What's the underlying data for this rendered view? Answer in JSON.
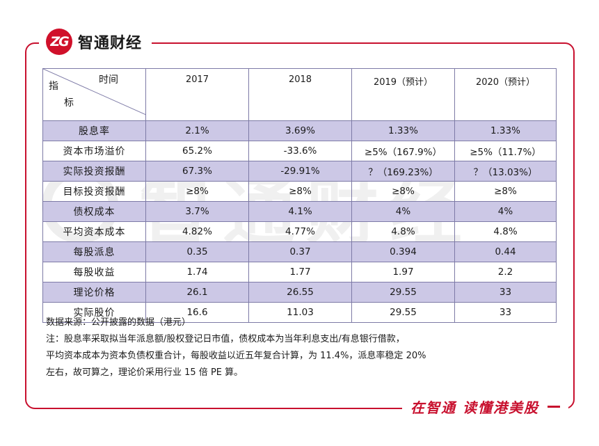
{
  "brand": {
    "logo_text": "ZG",
    "name": "智通财经"
  },
  "slogan": "在智通 读懂港美股",
  "watermark": "智通财经",
  "table": {
    "header": {
      "time_label": "时间",
      "indicator_label_top": "指",
      "indicator_label_bottom": "标",
      "years": [
        "2017",
        "2018",
        "2019（预计）",
        "2020（预计）"
      ]
    },
    "rows": [
      {
        "label": "股息率",
        "values": [
          "2.1%",
          "3.69%",
          "1.33%",
          "1.33%"
        ],
        "shaded": true
      },
      {
        "label": "资本市场溢价",
        "values": [
          "65.2%",
          "-33.6%",
          "≥5%（167.9%）",
          "≥5%（11.7%）"
        ],
        "shaded": false
      },
      {
        "label": "实际投资报酬",
        "values": [
          "67.3%",
          "-29.91%",
          "？（169.23%）",
          "？（13.03%）"
        ],
        "shaded": true
      },
      {
        "label": "目标投资报酬",
        "values": [
          "≥8%",
          "≥8%",
          "≥8%",
          "≥8%"
        ],
        "shaded": false
      },
      {
        "label": "债权成本",
        "values": [
          "3.7%",
          "4.1%",
          "4%",
          "4%"
        ],
        "shaded": true
      },
      {
        "label": "平均资本成本",
        "values": [
          "4.82%",
          "4.77%",
          "4.8%",
          "4.8%"
        ],
        "shaded": false
      },
      {
        "label": "每股派息",
        "values": [
          "0.35",
          "0.37",
          "0.394",
          "0.44"
        ],
        "shaded": true
      },
      {
        "label": "每股收益",
        "values": [
          "1.74",
          "1.77",
          "1.97",
          "2.2"
        ],
        "shaded": false
      },
      {
        "label": "理论价格",
        "values": [
          "26.1",
          "26.55",
          "29.55",
          "33"
        ],
        "shaded": true
      },
      {
        "label": "实际股价",
        "values": [
          "16.6",
          "11.03",
          "29.55",
          "33"
        ],
        "shaded": false
      }
    ]
  },
  "notes": {
    "source": "数据来源：公开披露的数据（港元）",
    "note_line1": "注：股息率采取拟当年派息额/股权登记日市值，债权成本为当年利息支出/有息银行借款，",
    "note_line2": "平均资本成本为资本负债权重合计，每股收益以近五年复合计算，为 11.4%，派息率稳定 20%",
    "note_line3": "左右，故可算之，理论价采用行业 15 倍 PE 算。"
  },
  "colors": {
    "brand_red": "#c8102e",
    "row_shade": "#ccc8e6",
    "grid": "#7d7aa6"
  }
}
